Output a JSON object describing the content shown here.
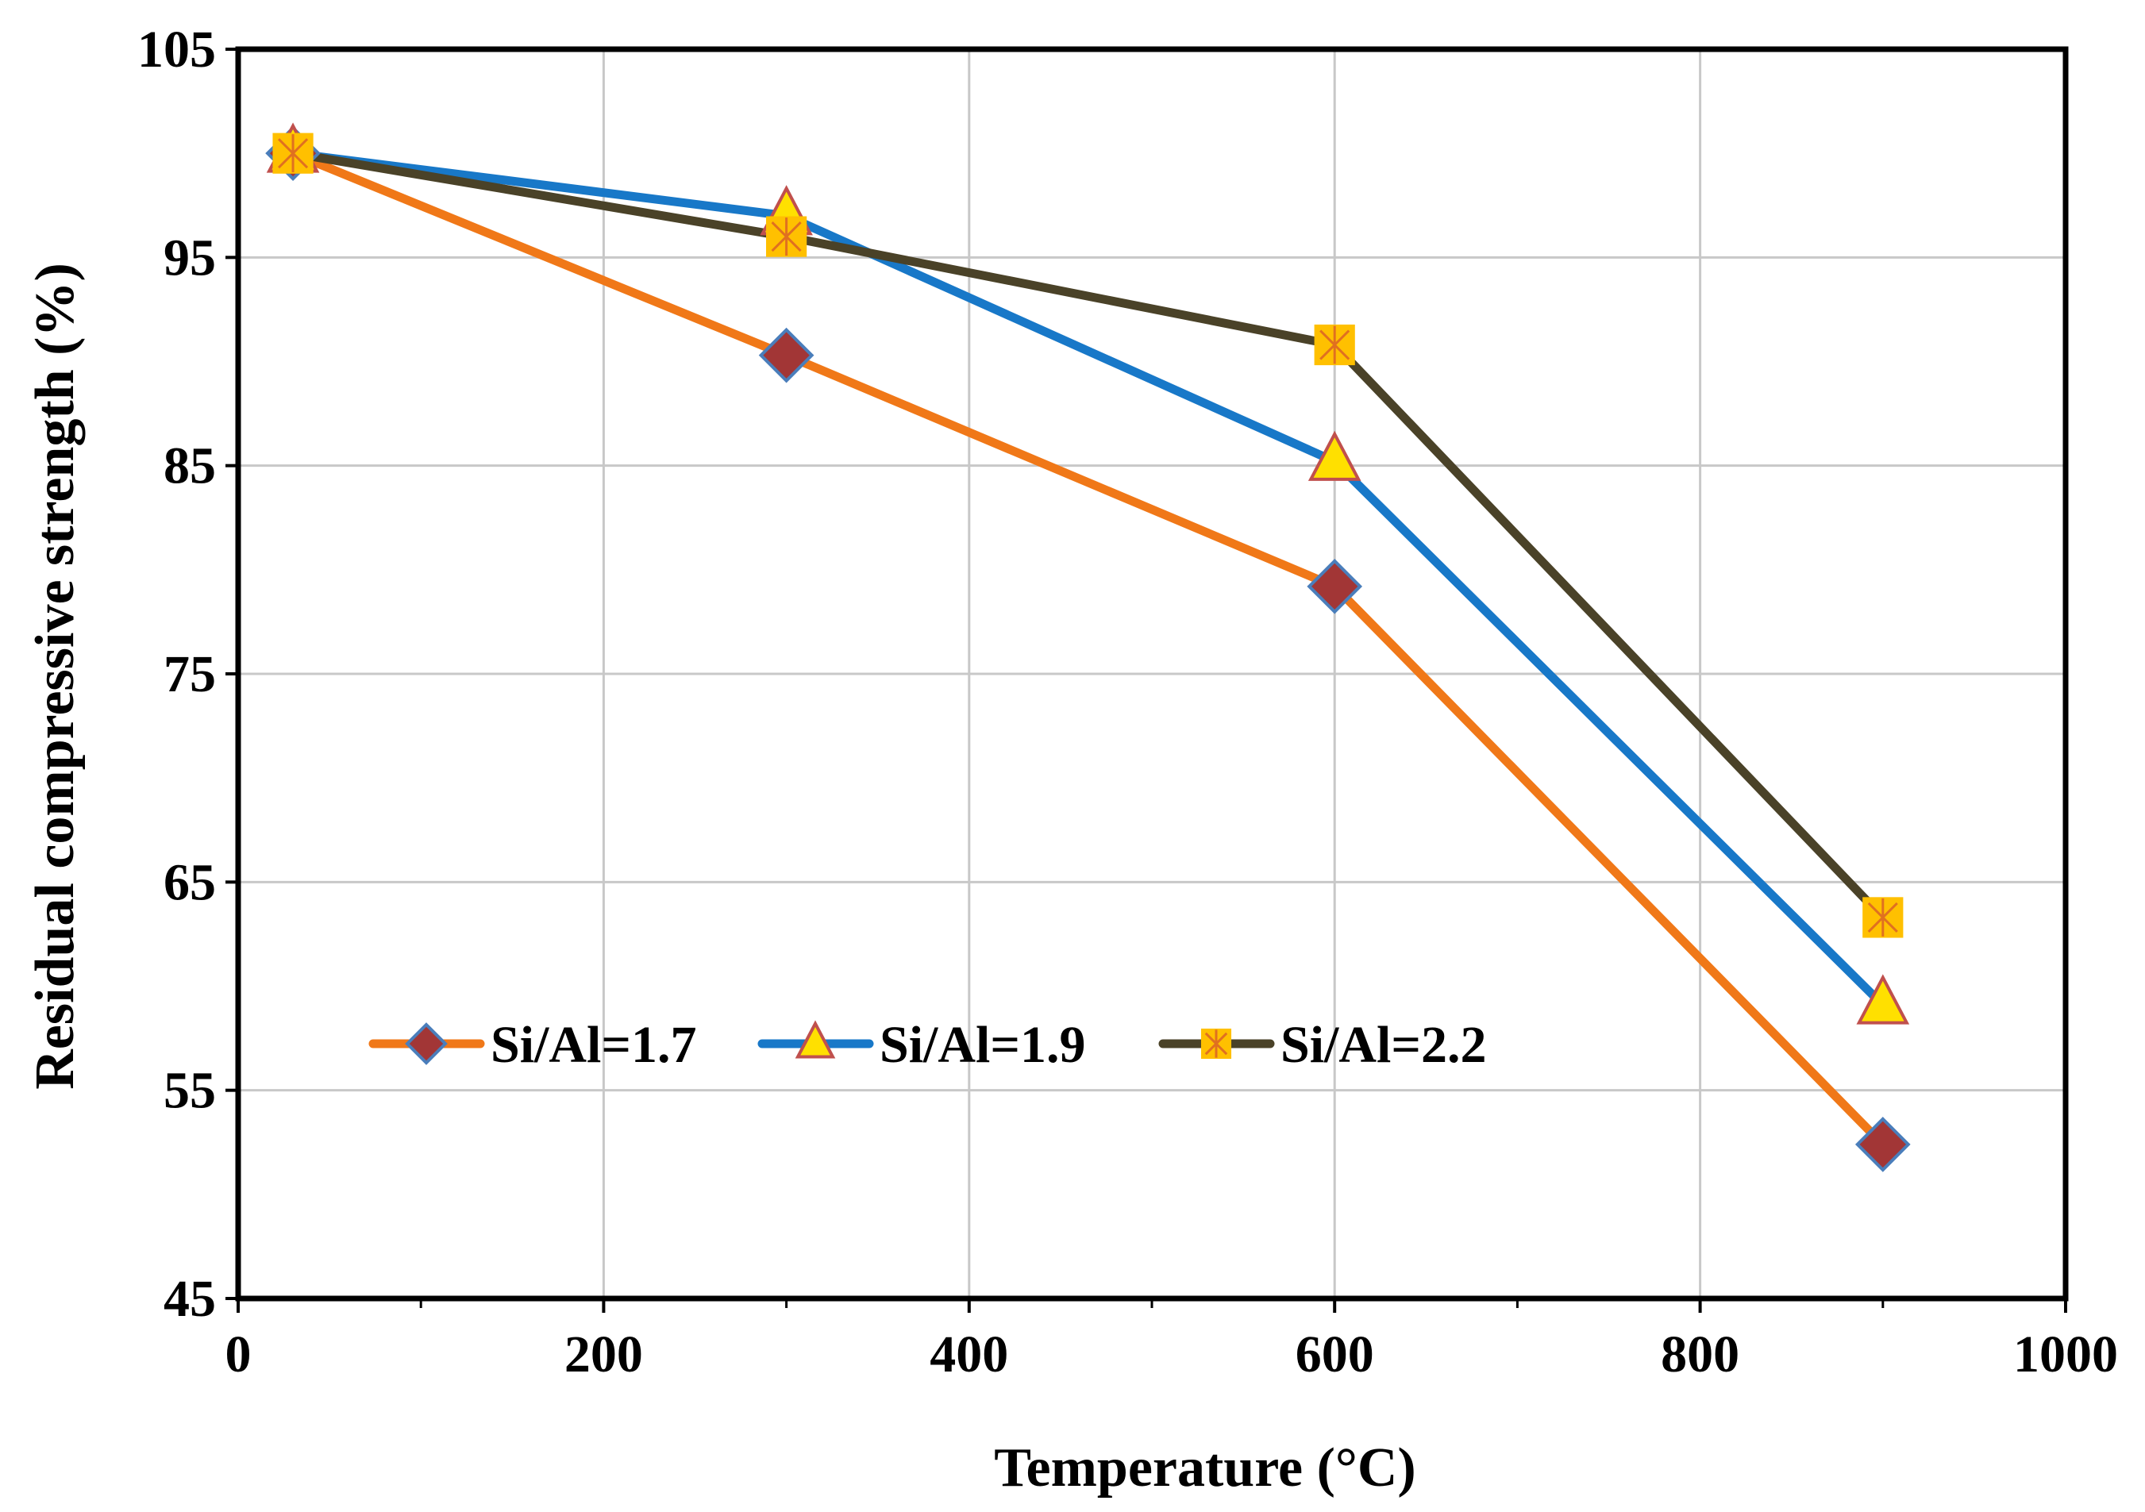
{
  "chart_data": {
    "type": "line",
    "title": "",
    "xlabel": "Temperature (°C)",
    "ylabel": "Residual compressive strength (%)",
    "xlim": [
      0,
      1000
    ],
    "ylim": [
      45,
      105
    ],
    "x_ticks": [
      "0",
      "200",
      "400",
      "600",
      "800",
      "1000"
    ],
    "y_ticks": [
      "45",
      "55",
      "65",
      "75",
      "85",
      "95",
      "105"
    ],
    "grid": true,
    "legend_position": "lower-left",
    "series": [
      {
        "name": "Si/Al=1.7",
        "color": "#F07818",
        "marker": "diamond",
        "marker_fill": "#A23636",
        "marker_stroke": "#4A7EBB",
        "x": [
          30,
          300,
          600,
          900
        ],
        "values": [
          100,
          90.3,
          79.2,
          52.4
        ]
      },
      {
        "name": "Si/Al=1.9",
        "color": "#1878C8",
        "marker": "triangle",
        "marker_fill": "#FFE000",
        "marker_stroke": "#C0504D",
        "x": [
          30,
          300,
          600,
          900
        ],
        "values": [
          100,
          97,
          85.2,
          59.1
        ]
      },
      {
        "name": "Si/Al=2.2",
        "color": "#4A4228",
        "marker": "square",
        "marker_fill": "#FFC000",
        "marker_stroke": "#E07020",
        "x": [
          30,
          300,
          600,
          900
        ],
        "values": [
          100,
          96,
          90.8,
          63.3
        ]
      }
    ]
  }
}
